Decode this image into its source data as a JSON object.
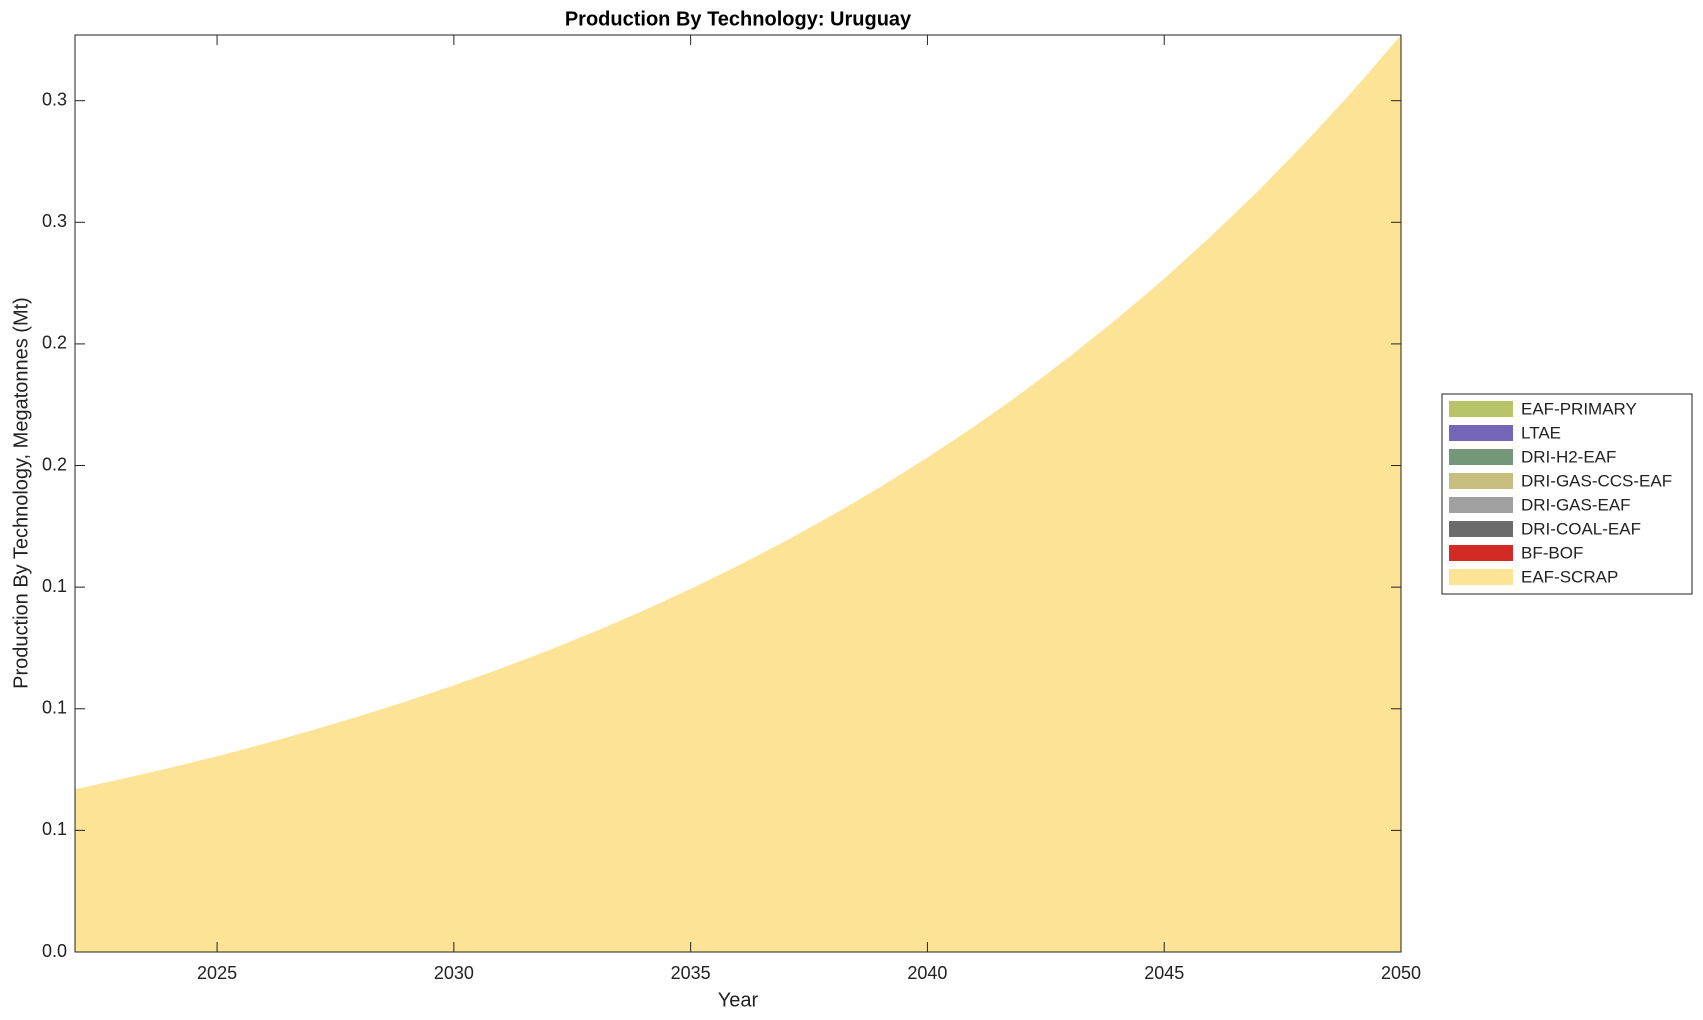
{
  "chart_data": {
    "type": "stacked_area",
    "title": "Production By Technology: Uruguay",
    "x_label": "Year",
    "y_label": "Production By Technology, Megatonnes (Mt)",
    "x": [
      2022,
      2023,
      2024,
      2025,
      2026,
      2027,
      2028,
      2029,
      2030,
      2031,
      2032,
      2033,
      2034,
      2035,
      2036,
      2037,
      2038,
      2039,
      2040,
      2041,
      2042,
      2043,
      2044,
      2045,
      2046,
      2047,
      2048,
      2049,
      2050
    ],
    "xlim": [
      2022,
      2050
    ],
    "xticks": [
      2025,
      2030,
      2035,
      2040,
      2045,
      2050
    ],
    "ylim": [
      0,
      0.377
    ],
    "yticks": [
      {
        "value": 0,
        "label": "0.0"
      },
      {
        "value": 0.05,
        "label": "0.1"
      },
      {
        "value": 0.1,
        "label": "0.1"
      },
      {
        "value": 0.15,
        "label": "0.1"
      },
      {
        "value": 0.2,
        "label": "0.2"
      },
      {
        "value": 0.25,
        "label": "0.2"
      },
      {
        "value": 0.3,
        "label": "0.3"
      },
      {
        "value": 0.35,
        "label": "0.3"
      }
    ],
    "legend_position": "right",
    "series": [
      {
        "name": "EAF-SCRAP",
        "color": "#fde396",
        "values": [
          0.0669,
          0.0712,
          0.0757,
          0.0805,
          0.0856,
          0.0911,
          0.0969,
          0.1031,
          0.1096,
          0.1166,
          0.124,
          0.1319,
          0.1403,
          0.1493,
          0.1588,
          0.1689,
          0.1797,
          0.1911,
          0.2033,
          0.2162,
          0.23,
          0.2447,
          0.2603,
          0.2768,
          0.2945,
          0.3132,
          0.3332,
          0.3544,
          0.377
        ]
      },
      {
        "name": "BF-BOF",
        "color": "#d42a26",
        "values": [
          0,
          0,
          0,
          0,
          0,
          0,
          0,
          0,
          0,
          0,
          0,
          0,
          0,
          0,
          0,
          0,
          0,
          0,
          0,
          0,
          0,
          0,
          0,
          0,
          0,
          0,
          0,
          0,
          0
        ]
      },
      {
        "name": "DRI-COAL-EAF",
        "color": "#6b6b6b",
        "values": [
          0,
          0,
          0,
          0,
          0,
          0,
          0,
          0,
          0,
          0,
          0,
          0,
          0,
          0,
          0,
          0,
          0,
          0,
          0,
          0,
          0,
          0,
          0,
          0,
          0,
          0,
          0,
          0,
          0
        ]
      },
      {
        "name": "DRI-GAS-EAF",
        "color": "#a0a0a0",
        "values": [
          0,
          0,
          0,
          0,
          0,
          0,
          0,
          0,
          0,
          0,
          0,
          0,
          0,
          0,
          0,
          0,
          0,
          0,
          0,
          0,
          0,
          0,
          0,
          0,
          0,
          0,
          0,
          0,
          0
        ]
      },
      {
        "name": "DRI-GAS-CCS-EAF",
        "color": "#c6bd7e",
        "values": [
          0,
          0,
          0,
          0,
          0,
          0,
          0,
          0,
          0,
          0,
          0,
          0,
          0,
          0,
          0,
          0,
          0,
          0,
          0,
          0,
          0,
          0,
          0,
          0,
          0,
          0,
          0,
          0,
          0
        ]
      },
      {
        "name": "DRI-H2-EAF",
        "color": "#74977a",
        "values": [
          0,
          0,
          0,
          0,
          0,
          0,
          0,
          0,
          0,
          0,
          0,
          0,
          0,
          0,
          0,
          0,
          0,
          0,
          0,
          0,
          0,
          0,
          0,
          0,
          0,
          0,
          0,
          0,
          0
        ]
      },
      {
        "name": "LTAE",
        "color": "#7565b7",
        "values": [
          0,
          0,
          0,
          0,
          0,
          0,
          0,
          0,
          0,
          0,
          0,
          0,
          0,
          0,
          0,
          0,
          0,
          0,
          0,
          0,
          0,
          0,
          0,
          0,
          0,
          0,
          0,
          0,
          0
        ]
      },
      {
        "name": "EAF-PRIMARY",
        "color": "#b9c46a",
        "values": [
          0,
          0,
          0,
          0,
          0,
          0,
          0,
          0,
          0,
          0,
          0,
          0,
          0,
          0,
          0,
          0,
          0,
          0,
          0,
          0,
          0,
          0,
          0,
          0,
          0,
          0,
          0,
          0,
          0
        ]
      }
    ]
  }
}
